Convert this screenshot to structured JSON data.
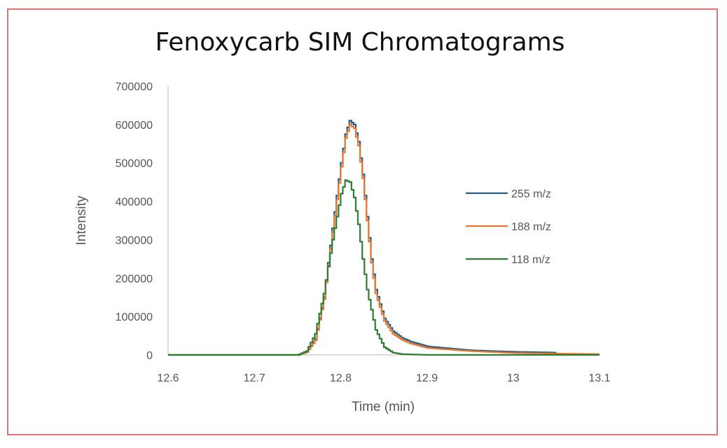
{
  "chart_data": {
    "type": "line",
    "title": "Fenoxycarb SIM Chromatograms",
    "xlabel": "Time (min)",
    "ylabel": "Intensity",
    "xlim": [
      12.6,
      13.1
    ],
    "ylim": [
      0,
      700000
    ],
    "x_ticks": [
      "12.6",
      "12.7",
      "12.8",
      "12.9",
      "13",
      "13.1"
    ],
    "y_ticks": [
      "0",
      "100000",
      "200000",
      "300000",
      "400000",
      "500000",
      "600000",
      "700000"
    ],
    "grid": false,
    "legend_position": "right",
    "series": [
      {
        "name": "255 m/z",
        "color": "#1f5f8b",
        "x": [
          12.6,
          12.75,
          12.76,
          12.77,
          12.78,
          12.79,
          12.8,
          12.805,
          12.81,
          12.815,
          12.82,
          12.825,
          12.83,
          12.835,
          12.84,
          12.85,
          12.86,
          12.87,
          12.88,
          12.9,
          12.95,
          13.0,
          13.05
        ],
        "y": [
          0,
          0,
          8000,
          40000,
          150000,
          330000,
          500000,
          575000,
          610000,
          600000,
          555000,
          470000,
          360000,
          250000,
          170000,
          95000,
          62000,
          45000,
          35000,
          22000,
          12000,
          8000,
          6000
        ]
      },
      {
        "name": "188 m/z",
        "color": "#e8762c",
        "x": [
          12.6,
          12.75,
          12.76,
          12.77,
          12.78,
          12.79,
          12.8,
          12.805,
          12.81,
          12.815,
          12.82,
          12.825,
          12.83,
          12.835,
          12.84,
          12.85,
          12.86,
          12.87,
          12.88,
          12.9,
          12.95,
          13.0,
          13.1
        ],
        "y": [
          0,
          0,
          7000,
          38000,
          145000,
          320000,
          490000,
          565000,
          600000,
          590000,
          545000,
          460000,
          350000,
          240000,
          160000,
          88000,
          55000,
          40000,
          30000,
          18000,
          10000,
          5000,
          2000
        ]
      },
      {
        "name": "118 m/z",
        "color": "#2e7d32",
        "x": [
          12.6,
          12.75,
          12.76,
          12.77,
          12.78,
          12.79,
          12.8,
          12.805,
          12.81,
          12.815,
          12.82,
          12.825,
          12.83,
          12.84,
          12.85,
          12.86,
          12.87,
          12.9,
          13.1
        ],
        "y": [
          0,
          0,
          10000,
          55000,
          160000,
          300000,
          420000,
          455000,
          450000,
          410000,
          340000,
          250000,
          170000,
          65000,
          20000,
          6000,
          2000,
          0,
          0
        ]
      }
    ]
  }
}
